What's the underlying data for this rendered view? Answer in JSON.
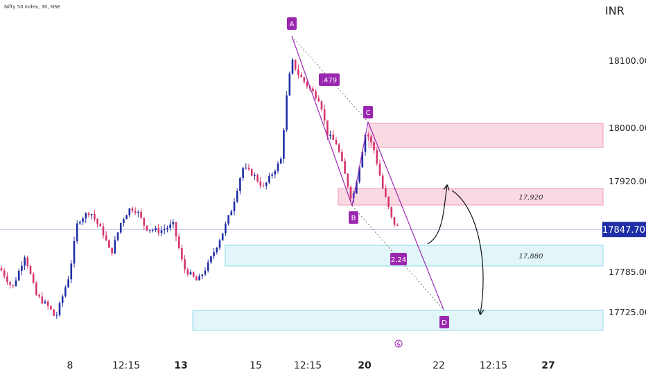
{
  "header": {
    "symbol": "Nifty 50 Index, 30, NSE",
    "currency": "INR"
  },
  "chart_data": {
    "type": "candlestick",
    "y_ticks": [
      18100,
      18000,
      17920,
      17785,
      17725
    ],
    "y_tick_labels": [
      "18100.00",
      "18000.00",
      "17920.00",
      "17785.00",
      "17725.00"
    ],
    "x_tick_labels": [
      {
        "label": "8",
        "bold": false
      },
      {
        "label": "12:15",
        "bold": false
      },
      {
        "label": "13",
        "bold": true
      },
      {
        "label": "15",
        "bold": false
      },
      {
        "label": "12:15",
        "bold": false
      },
      {
        "label": "20",
        "bold": true
      },
      {
        "label": "22",
        "bold": false
      },
      {
        "label": "12:15",
        "bold": false
      },
      {
        "label": "27",
        "bold": true
      }
    ],
    "last_price": "17847.70",
    "zones": [
      {
        "kind": "supply",
        "label": ""
      },
      {
        "kind": "supply",
        "label": "17,920"
      },
      {
        "kind": "demand",
        "label": "17,880"
      },
      {
        "kind": "demand",
        "label": ""
      }
    ],
    "pattern_points": [
      "A",
      "B",
      "C",
      "D"
    ],
    "pattern_ratios": [
      ".479",
      "2.24"
    ],
    "colors": {
      "up": "#1f2ea6",
      "down": "#d6336c",
      "pattern": "#9b27b0",
      "supply_fill": "#fbd9e3",
      "supply_line": "#f19ab5",
      "demand_fill": "#e2f6fa",
      "demand_line": "#8fd9e8",
      "price_tag": "#1f2ea6"
    }
  }
}
